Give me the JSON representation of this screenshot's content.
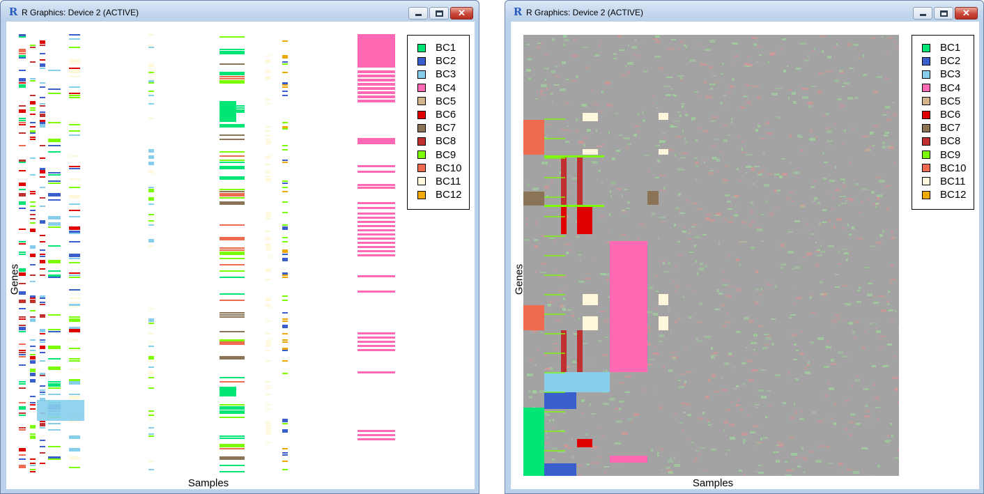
{
  "windows": [
    {
      "id": "left",
      "title": "R Graphics: Device 2 (ACTIVE)",
      "axis": {
        "ylabel": "Genes",
        "xlabel": "Samples"
      },
      "legend": [
        "BC1",
        "BC2",
        "BC3",
        "BC4",
        "BC5",
        "BC6",
        "BC7",
        "BC8",
        "BC9",
        "BC10",
        "BC11",
        "BC12"
      ]
    },
    {
      "id": "right",
      "title": "R Graphics: Device 2 (ACTIVE)",
      "axis": {
        "ylabel": "Genes",
        "xlabel": "Samples"
      },
      "legend": [
        "BC1",
        "BC2",
        "BC3",
        "BC4",
        "BC5",
        "BC6",
        "BC7",
        "BC8",
        "BC9",
        "BC10",
        "BC11",
        "BC12"
      ]
    }
  ],
  "legend_colors": [
    "#00e676",
    "#3a5fcd",
    "#87ceeb",
    "#ff69b4",
    "#d2b48c",
    "#e00000",
    "#8b7355",
    "#c03030",
    "#7cfc00",
    "#ee6a50",
    "#fff8dc",
    "#f0a800"
  ],
  "chart_data": [
    {
      "type": "heatmap",
      "title": "",
      "xlabel": "Samples",
      "ylabel": "Genes",
      "background": "white",
      "legend": [
        "BC1",
        "BC2",
        "BC3",
        "BC4",
        "BC5",
        "BC6",
        "BC7",
        "BC8",
        "BC9",
        "BC10",
        "BC11",
        "BC12"
      ],
      "legend_position": "top-right"
    },
    {
      "type": "heatmap",
      "title": "",
      "xlabel": "Samples",
      "ylabel": "Genes",
      "background": "gray expression matrix (red/green)",
      "legend": [
        "BC1",
        "BC2",
        "BC3",
        "BC4",
        "BC5",
        "BC6",
        "BC7",
        "BC8",
        "BC9",
        "BC10",
        "BC11",
        "BC12"
      ],
      "legend_position": "top-right"
    }
  ]
}
